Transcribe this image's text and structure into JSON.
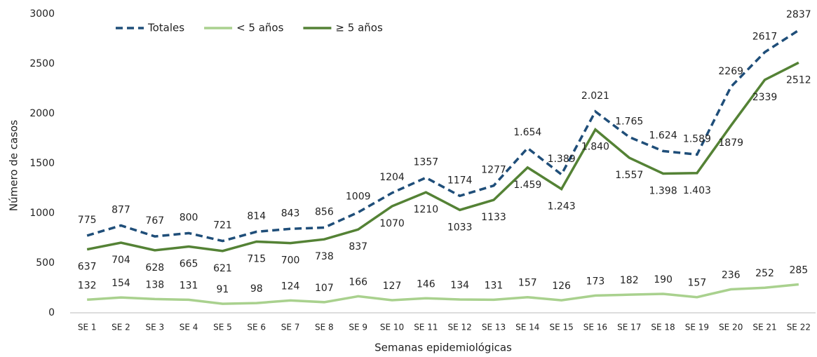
{
  "chart_data": {
    "type": "line",
    "x_label": "Semanas epidemiológicas",
    "y_label": "Número de casos",
    "categories": [
      "SE 1",
      "SE 2",
      "SE 3",
      "SE 4",
      "SE 5",
      "SE 6",
      "SE 7",
      "SE 8",
      "SE 9",
      "SE 10",
      "SE 11",
      "SE 12",
      "SE 13",
      "SE 14",
      "SE 15",
      "SE 16",
      "SE 17",
      "SE 18",
      "SE 19",
      "SE 20",
      "SE 21",
      "SE 22"
    ],
    "series": [
      {
        "name": "Totales",
        "color": "#1f4e79",
        "dashed": true,
        "values": [
          775,
          877,
          767,
          800,
          721,
          814,
          843,
          856,
          1009,
          1204,
          1357,
          1174,
          1277,
          1654,
          1389,
          2021,
          1765,
          1624,
          1589,
          2269,
          2617,
          2837
        ],
        "value_labels": [
          "775",
          "877",
          "767",
          "800",
          "721",
          "814",
          "843",
          "856",
          "1009",
          "1204",
          "1357",
          "1174",
          "1277",
          "1.654",
          "1.389",
          "2.021",
          "1.765",
          "1.624",
          "1.589",
          "2269",
          "2617",
          "2837"
        ]
      },
      {
        "name": "< 5 años",
        "color": "#a9d18e",
        "dashed": false,
        "values": [
          132,
          154,
          138,
          131,
          91,
          98,
          124,
          107,
          166,
          127,
          146,
          134,
          131,
          157,
          126,
          173,
          182,
          190,
          157,
          236,
          252,
          285
        ],
        "value_labels": [
          "132",
          "154",
          "138",
          "131",
          "91",
          "98",
          "124",
          "107",
          "166",
          "127",
          "146",
          "134",
          "131",
          "157",
          "126",
          "173",
          "182",
          "190",
          "157",
          "236",
          "252",
          "285"
        ]
      },
      {
        "name": "≥ 5 años",
        "color": "#548235",
        "dashed": false,
        "values": [
          637,
          704,
          628,
          665,
          621,
          715,
          700,
          738,
          837,
          1070,
          1210,
          1033,
          1133,
          1459,
          1243,
          1840,
          1557,
          1398,
          1403,
          1879,
          2339,
          2512
        ],
        "value_labels": [
          "637",
          "704",
          "628",
          "665",
          "621",
          "715",
          "700",
          "738",
          "837",
          "1070",
          "1210",
          "1033",
          "1133",
          "1.459",
          "1.243",
          "1.840",
          "1.557",
          "1.398",
          "1.403",
          "1879",
          "2339",
          "2512"
        ]
      }
    ],
    "ylim": [
      0,
      3000
    ],
    "yticks": [
      0,
      500,
      1000,
      1500,
      2000,
      2500,
      3000
    ],
    "grid": false,
    "legend": "top-left"
  }
}
